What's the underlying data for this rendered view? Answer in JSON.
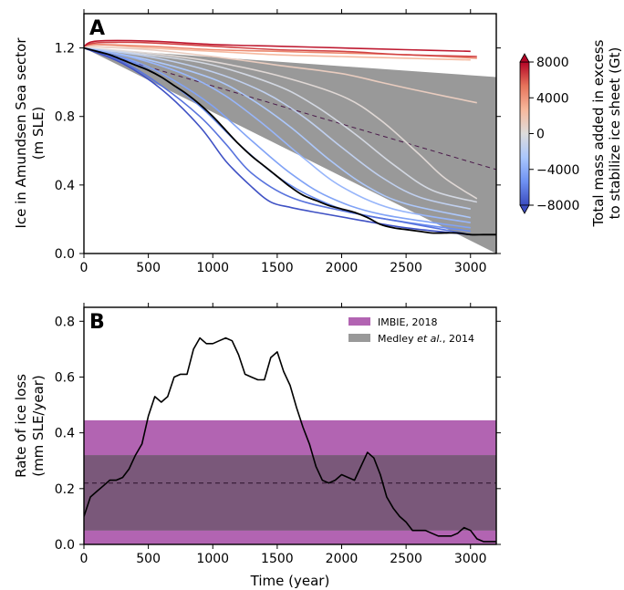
{
  "chart_data": [
    {
      "panel_label": "A",
      "type": "line",
      "ylabel_lines": [
        "Ice in Amundsen Sea sector",
        "(m SLE)"
      ],
      "xlim": [
        0,
        3200
      ],
      "ylim": [
        0,
        1.4
      ],
      "x_ticks": [
        0,
        500,
        1000,
        1500,
        2000,
        2500,
        3000
      ],
      "y_ticks": [
        0.0,
        0.4,
        0.8,
        1.2
      ],
      "y_tick_labels": [
        "0.0",
        "0.4",
        "0.8",
        "1.2"
      ],
      "colorbar": {
        "label_lines": [
          "Total mass added in excess",
          "to stabilize ice sheet (Gt)"
        ],
        "range": [
          -8000,
          8000
        ],
        "ticks": [
          8000,
          4000,
          0,
          -4000,
          -8000
        ],
        "tick_labels": [
          "8000",
          "4000",
          "0",
          "−4000",
          "−8000"
        ],
        "colormap": [
          "#3b4cc0",
          "#6f92f3",
          "#aac7fd",
          "#dddcdc",
          "#f7b89c",
          "#e7745b",
          "#b40426"
        ]
      },
      "bands": [
        {
          "legend": "Medley et al., 2014",
          "color": "#999999",
          "x": [
            0,
            3200
          ],
          "y_top": [
            1.2,
            1.03
          ],
          "y_bottom": [
            1.2,
            0.0
          ]
        },
        {
          "legend": "IMBIE, 2018",
          "color": "#b264b2",
          "x": [
            0,
            3200
          ],
          "y_top": [
            1.2,
            0.0
          ],
          "y_bottom": [
            1.2,
            0.0
          ]
        }
      ],
      "reference_line": {
        "style": "dashed",
        "x": [
          0,
          3200
        ],
        "y": [
          1.2,
          0.49
        ]
      },
      "control_run": {
        "color": "#000000",
        "x": [
          0,
          100,
          200,
          300,
          400,
          500,
          600,
          700,
          800,
          900,
          1000,
          1100,
          1200,
          1300,
          1400,
          1500,
          1600,
          1700,
          1800,
          1900,
          2000,
          2100,
          2200,
          2300,
          2400,
          2500,
          2600,
          2700,
          2800,
          2900,
          3000,
          3100,
          3200
        ],
        "y": [
          1.2,
          1.18,
          1.16,
          1.13,
          1.1,
          1.07,
          1.03,
          0.98,
          0.93,
          0.87,
          0.8,
          0.72,
          0.64,
          0.57,
          0.51,
          0.45,
          0.39,
          0.34,
          0.31,
          0.28,
          0.26,
          0.24,
          0.21,
          0.17,
          0.15,
          0.14,
          0.13,
          0.12,
          0.12,
          0.12,
          0.11,
          0.11,
          0.11
        ]
      },
      "ensemble": [
        {
          "value": 7500,
          "x_end": 3000,
          "x": [
            0,
            100,
            500,
            1000,
            1500,
            2000,
            2500,
            3000
          ],
          "y": [
            1.21,
            1.24,
            1.24,
            1.22,
            1.21,
            1.2,
            1.19,
            1.18
          ]
        },
        {
          "value": 6500,
          "x_end": 3050,
          "x": [
            0,
            100,
            500,
            1000,
            1500,
            2000,
            2500,
            3050
          ],
          "y": [
            1.21,
            1.23,
            1.23,
            1.21,
            1.19,
            1.18,
            1.16,
            1.15
          ]
        },
        {
          "value": 4500,
          "x_end": 3050,
          "x": [
            0,
            100,
            500,
            1000,
            1500,
            2000,
            2500,
            3050
          ],
          "y": [
            1.21,
            1.22,
            1.21,
            1.19,
            1.18,
            1.17,
            1.16,
            1.14
          ]
        },
        {
          "value": 2500,
          "x_end": 3000,
          "x": [
            0,
            100,
            500,
            1000,
            1500,
            2000,
            2500,
            3000
          ],
          "y": [
            1.21,
            1.22,
            1.2,
            1.18,
            1.16,
            1.15,
            1.14,
            1.13
          ]
        },
        {
          "value": 1200,
          "x_end": 3050,
          "x": [
            0,
            500,
            1000,
            1500,
            2000,
            2300,
            2600,
            3050
          ],
          "y": [
            1.21,
            1.19,
            1.15,
            1.1,
            1.05,
            1.0,
            0.95,
            0.88
          ]
        },
        {
          "value": 300,
          "x_end": 3050,
          "x": [
            0,
            500,
            1000,
            1500,
            2000,
            2300,
            2600,
            2800,
            3050
          ],
          "y": [
            1.2,
            1.17,
            1.12,
            1.04,
            0.92,
            0.78,
            0.58,
            0.44,
            0.32
          ]
        },
        {
          "value": -500,
          "x_end": 3050,
          "x": [
            0,
            500,
            1000,
            1500,
            1800,
            2100,
            2400,
            2700,
            3050
          ],
          "y": [
            1.2,
            1.16,
            1.1,
            0.98,
            0.86,
            0.7,
            0.52,
            0.37,
            0.3
          ]
        },
        {
          "value": -1500,
          "x_end": 3000,
          "x": [
            0,
            500,
            1000,
            1400,
            1700,
            2000,
            2300,
            2600,
            3000
          ],
          "y": [
            1.2,
            1.15,
            1.06,
            0.94,
            0.8,
            0.62,
            0.45,
            0.33,
            0.26
          ]
        },
        {
          "value": -2500,
          "x_end": 3000,
          "x": [
            0,
            500,
            1000,
            1300,
            1600,
            1900,
            2200,
            2500,
            3000
          ],
          "y": [
            1.2,
            1.13,
            1.02,
            0.9,
            0.74,
            0.55,
            0.39,
            0.29,
            0.21
          ]
        },
        {
          "value": -3500,
          "x_end": 3000,
          "x": [
            0,
            400,
            800,
            1100,
            1400,
            1700,
            2000,
            2400,
            3000
          ],
          "y": [
            1.2,
            1.14,
            1.04,
            0.92,
            0.75,
            0.56,
            0.39,
            0.26,
            0.18
          ]
        },
        {
          "value": -4500,
          "x_end": 3000,
          "x": [
            0,
            400,
            700,
            1000,
            1300,
            1600,
            1900,
            2300,
            3000
          ],
          "y": [
            1.2,
            1.12,
            1.01,
            0.86,
            0.66,
            0.47,
            0.33,
            0.23,
            0.15
          ]
        },
        {
          "value": -5500,
          "x_end": 3000,
          "x": [
            0,
            300,
            600,
            900,
            1200,
            1500,
            1800,
            2200,
            3000
          ],
          "y": [
            1.2,
            1.14,
            1.03,
            0.86,
            0.64,
            0.45,
            0.32,
            0.22,
            0.13
          ]
        },
        {
          "value": -6500,
          "x_end": 3000,
          "x": [
            0,
            300,
            600,
            900,
            1100,
            1300,
            1600,
            2000,
            2500,
            3000
          ],
          "y": [
            1.2,
            1.12,
            0.98,
            0.8,
            0.64,
            0.47,
            0.33,
            0.25,
            0.18,
            0.11
          ]
        },
        {
          "value": -7800,
          "x_end": 3000,
          "x": [
            0,
            300,
            600,
            900,
            1100,
            1300,
            1450,
            1600,
            1800,
            2100,
            2500,
            3000
          ],
          "y": [
            1.2,
            1.11,
            0.96,
            0.74,
            0.54,
            0.39,
            0.3,
            0.27,
            0.24,
            0.2,
            0.15,
            0.11
          ]
        }
      ]
    },
    {
      "panel_label": "B",
      "type": "line",
      "xlabel": "Time (year)",
      "ylabel_lines": [
        "Rate of ice loss",
        "(mm SLE/year)"
      ],
      "xlim": [
        0,
        3200
      ],
      "ylim": [
        0,
        0.85
      ],
      "x_ticks": [
        0,
        500,
        1000,
        1500,
        2000,
        2500,
        3000
      ],
      "y_ticks": [
        0.0,
        0.2,
        0.4,
        0.6,
        0.8
      ],
      "y_tick_labels": [
        "0.0",
        "0.2",
        "0.4",
        "0.6",
        "0.8"
      ],
      "legend": {
        "location": "top-right",
        "entries": [
          {
            "label": "IMBIE, 2018",
            "color": "#b264b2"
          },
          {
            "label_parts": [
              "Medley ",
              "et al.",
              ", 2014"
            ],
            "color": "#999999"
          }
        ]
      },
      "bands": [
        {
          "legend": "IMBIE, 2018",
          "color": "#b264b2",
          "y_range": [
            0.0,
            0.445
          ]
        },
        {
          "legend": "Medley et al., 2014",
          "color": "#999999",
          "y_range": [
            0.05,
            0.32
          ]
        }
      ],
      "reference_line": {
        "style": "dashed",
        "y": 0.22
      },
      "series": [
        {
          "color": "#000000",
          "x": [
            0,
            50,
            100,
            150,
            200,
            250,
            300,
            350,
            400,
            450,
            500,
            550,
            600,
            650,
            700,
            750,
            800,
            850,
            900,
            950,
            1000,
            1050,
            1100,
            1150,
            1200,
            1250,
            1300,
            1350,
            1400,
            1450,
            1500,
            1550,
            1600,
            1650,
            1700,
            1750,
            1800,
            1850,
            1900,
            1950,
            2000,
            2050,
            2100,
            2150,
            2200,
            2250,
            2300,
            2350,
            2400,
            2450,
            2500,
            2550,
            2600,
            2650,
            2700,
            2750,
            2800,
            2850,
            2900,
            2950,
            3000,
            3050,
            3100,
            3150,
            3200
          ],
          "y": [
            0.1,
            0.17,
            0.19,
            0.21,
            0.23,
            0.23,
            0.24,
            0.27,
            0.32,
            0.36,
            0.46,
            0.53,
            0.51,
            0.53,
            0.6,
            0.61,
            0.61,
            0.7,
            0.74,
            0.72,
            0.72,
            0.73,
            0.74,
            0.73,
            0.68,
            0.61,
            0.6,
            0.59,
            0.59,
            0.67,
            0.69,
            0.62,
            0.57,
            0.49,
            0.42,
            0.36,
            0.28,
            0.23,
            0.22,
            0.23,
            0.25,
            0.24,
            0.23,
            0.28,
            0.33,
            0.31,
            0.25,
            0.17,
            0.13,
            0.1,
            0.08,
            0.05,
            0.05,
            0.05,
            0.04,
            0.03,
            0.03,
            0.03,
            0.04,
            0.06,
            0.05,
            0.02,
            0.01,
            0.01,
            0.01
          ]
        }
      ]
    }
  ]
}
